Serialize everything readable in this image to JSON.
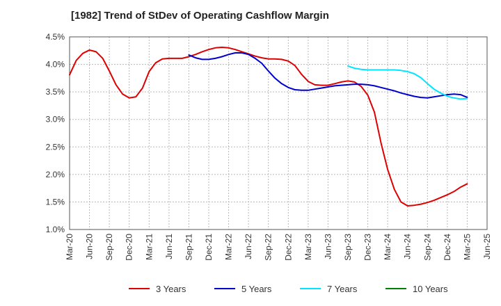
{
  "chart_data": {
    "type": "line",
    "title": "[1982]  Trend of StDev of Operating Cashflow Margin",
    "xlabel": "",
    "ylabel": "",
    "ylim": [
      1.0,
      4.5
    ],
    "yticks": [
      1.0,
      1.5,
      2.0,
      2.5,
      3.0,
      3.5,
      4.0,
      4.5
    ],
    "ytick_labels": [
      "1.0%",
      "1.5%",
      "2.0%",
      "2.5%",
      "3.0%",
      "3.5%",
      "4.0%",
      "4.5%"
    ],
    "x_tick_labels": [
      "Mar-20",
      "Jun-20",
      "Sep-20",
      "Dec-20",
      "Mar-21",
      "Jun-21",
      "Sep-21",
      "Dec-21",
      "Mar-22",
      "Jun-22",
      "Sep-22",
      "Dec-22",
      "Mar-23",
      "Jun-23",
      "Sep-23",
      "Dec-23",
      "Mar-24",
      "Jun-24",
      "Sep-24",
      "Dec-24",
      "Mar-25",
      "Jun-25"
    ],
    "x_months_range": [
      0,
      63
    ],
    "grid": true,
    "legend_position": "bottom",
    "series": [
      {
        "name": "3 Years",
        "color": "#dd0000",
        "x": [
          0,
          1,
          2,
          3,
          4,
          5,
          6,
          7,
          8,
          9,
          10,
          11,
          12,
          13,
          14,
          15,
          16,
          17,
          18,
          19,
          20,
          21,
          22,
          23,
          24,
          25,
          26,
          27,
          28,
          29,
          30,
          31,
          32,
          33,
          34,
          35,
          36,
          37,
          38,
          39,
          40,
          41,
          42,
          43,
          44,
          45,
          46,
          47,
          48,
          49,
          50,
          51,
          52,
          53,
          54,
          55,
          56,
          57,
          58,
          59,
          60
        ],
        "values": [
          3.81,
          4.07,
          4.2,
          4.26,
          4.23,
          4.11,
          3.88,
          3.63,
          3.46,
          3.39,
          3.41,
          3.57,
          3.87,
          4.03,
          4.1,
          4.11,
          4.11,
          4.11,
          4.14,
          4.18,
          4.23,
          4.27,
          4.3,
          4.31,
          4.3,
          4.27,
          4.23,
          4.19,
          4.15,
          4.12,
          4.1,
          4.1,
          4.09,
          4.06,
          3.98,
          3.82,
          3.69,
          3.63,
          3.62,
          3.62,
          3.65,
          3.68,
          3.7,
          3.68,
          3.6,
          3.44,
          3.13,
          2.57,
          2.09,
          1.73,
          1.5,
          1.43,
          1.44,
          1.46,
          1.49,
          1.53,
          1.58,
          1.63,
          1.69,
          1.77,
          1.83
        ]
      },
      {
        "name": "5 Years",
        "color": "#0000cc",
        "x": [
          18,
          19,
          20,
          21,
          22,
          23,
          24,
          25,
          26,
          27,
          28,
          29,
          30,
          31,
          32,
          33,
          34,
          35,
          36,
          37,
          38,
          39,
          40,
          41,
          42,
          43,
          44,
          45,
          46,
          47,
          48,
          49,
          50,
          51,
          52,
          53,
          54,
          55,
          56,
          57,
          58,
          59,
          60
        ],
        "values": [
          4.17,
          4.12,
          4.09,
          4.09,
          4.11,
          4.14,
          4.18,
          4.21,
          4.21,
          4.18,
          4.11,
          4.02,
          3.88,
          3.75,
          3.65,
          3.58,
          3.54,
          3.53,
          3.53,
          3.55,
          3.57,
          3.59,
          3.61,
          3.62,
          3.63,
          3.64,
          3.64,
          3.63,
          3.61,
          3.58,
          3.55,
          3.52,
          3.48,
          3.45,
          3.42,
          3.4,
          3.39,
          3.41,
          3.43,
          3.45,
          3.46,
          3.45,
          3.4
        ]
      },
      {
        "name": "7 Years",
        "color": "#00e5ff",
        "x": [
          42,
          43,
          44,
          45,
          46,
          47,
          48,
          49,
          50,
          51,
          52,
          53,
          54,
          55,
          56,
          57,
          58,
          59,
          60
        ],
        "values": [
          3.97,
          3.93,
          3.91,
          3.9,
          3.9,
          3.9,
          3.9,
          3.9,
          3.89,
          3.87,
          3.83,
          3.76,
          3.65,
          3.55,
          3.48,
          3.42,
          3.39,
          3.37,
          3.38
        ]
      },
      {
        "name": "10 Years",
        "color": "#008000",
        "x": [],
        "values": []
      }
    ]
  }
}
